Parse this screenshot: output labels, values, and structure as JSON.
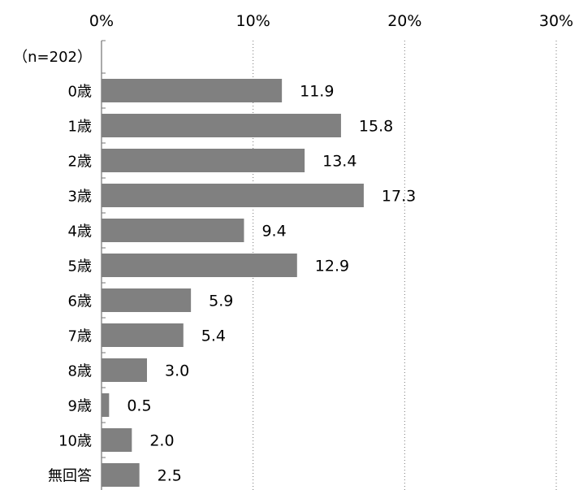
{
  "chart_data": {
    "type": "bar",
    "orientation": "horizontal",
    "sample_label": "（n=202）",
    "categories": [
      "0歳",
      "1歳",
      "2歳",
      "3歳",
      "4歳",
      "5歳",
      "6歳",
      "7歳",
      "8歳",
      "9歳",
      "10歳",
      "無回答"
    ],
    "values": [
      11.9,
      15.8,
      13.4,
      17.3,
      9.4,
      12.9,
      5.9,
      5.4,
      3.0,
      0.5,
      2.0,
      2.5
    ],
    "value_labels": [
      "11.9",
      "15.8",
      "13.4",
      "17.3",
      "9.4",
      "12.9",
      "5.9",
      "5.4",
      "3.0",
      "0.5",
      "2.0",
      "2.5"
    ],
    "xticks": [
      "0%",
      "10%",
      "20%",
      "30%"
    ],
    "xlim": [
      0,
      30
    ],
    "grid": "vertical dotted",
    "bar_color": "#808080"
  }
}
